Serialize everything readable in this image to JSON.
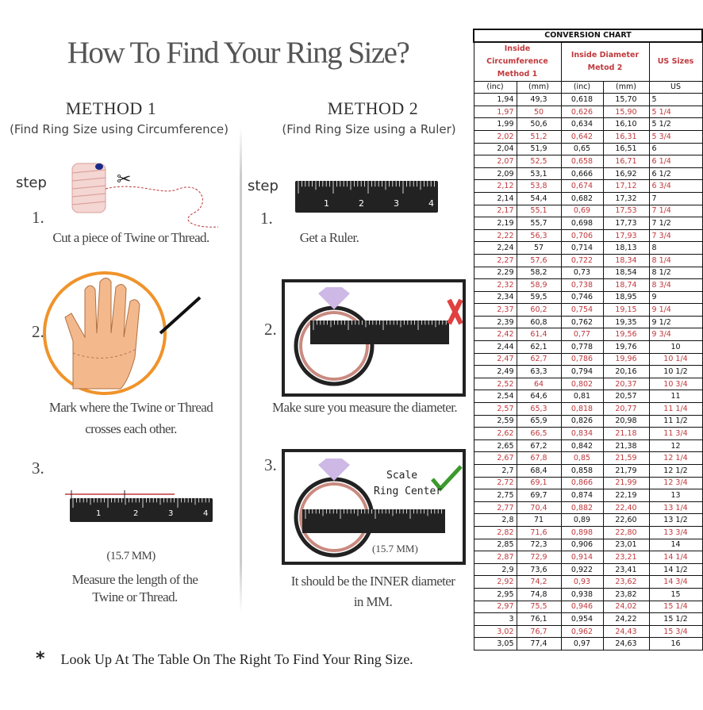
{
  "title": "How To Find Your Ring Size?",
  "method1": {
    "heading": "METHOD 1",
    "subtitle": "(Find Ring Size using Circumference)",
    "step_label": "step",
    "steps": [
      {
        "num": "1.",
        "text": "Cut a piece of Twine or Thread."
      },
      {
        "num": "2.",
        "text1": "Mark where the Twine or Thread",
        "text2": "crosses each other."
      },
      {
        "num": "3.",
        "measure": "(15.7 MM)",
        "text1": "Measure the length of the",
        "text2": "Twine or Thread."
      }
    ]
  },
  "method2": {
    "heading": "METHOD 2",
    "subtitle": "(Find Ring Size using a Ruler)",
    "step_label": "step",
    "steps": [
      {
        "num": "1.",
        "text": "Get a Ruler."
      },
      {
        "num": "2.",
        "text": "Make sure you measure the diameter."
      },
      {
        "num": "3.",
        "scale1": "Scale",
        "scale2": "Ring Center",
        "measure": "(15.7 MM)",
        "text1": "It should be the INNER diameter",
        "text2": "in MM."
      }
    ]
  },
  "ruler_ticks": [
    "1",
    "2",
    "3",
    "4"
  ],
  "footer": {
    "mark": "*",
    "text": "Look Up At The Table On The Right To Find Your Ring Size."
  },
  "colors": {
    "accent_red": "#c0393d",
    "check_green": "#3a9a2a",
    "cross_red": "#e04040"
  },
  "table": {
    "title": "CONVERSION CHART",
    "group1": "Inside Circumference Method 1",
    "group2": "Inside Diameter Metod 2",
    "group3": "US Sizes",
    "units": [
      "(inc)",
      "(mm)",
      "(inc)",
      "(mm)",
      "US"
    ],
    "rows": [
      [
        "1,94",
        "49,3",
        "0,618",
        "15,70",
        "5"
      ],
      [
        "1,97",
        "50",
        "0,626",
        "15,90",
        "5 1/4"
      ],
      [
        "1,99",
        "50,6",
        "0,634",
        "16,10",
        "5 1/2"
      ],
      [
        "2,02",
        "51,2",
        "0,642",
        "16,31",
        "5 3/4"
      ],
      [
        "2,04",
        "51,9",
        "0,65",
        "16,51",
        "6"
      ],
      [
        "2,07",
        "52,5",
        "0,658",
        "16,71",
        "6 1/4"
      ],
      [
        "2,09",
        "53,1",
        "0,666",
        "16,92",
        "6 1/2"
      ],
      [
        "2,12",
        "53,8",
        "0,674",
        "17,12",
        "6 3/4"
      ],
      [
        "2,14",
        "54,4",
        "0,682",
        "17,32",
        "7"
      ],
      [
        "2,17",
        "55,1",
        "0,69",
        "17,53",
        "7 1/4"
      ],
      [
        "2,19",
        "55,7",
        "0,698",
        "17,73",
        "7 1/2"
      ],
      [
        "2,22",
        "56,3",
        "0,706",
        "17,93",
        "7 3/4"
      ],
      [
        "2,24",
        "57",
        "0,714",
        "18,13",
        "8"
      ],
      [
        "2,27",
        "57,6",
        "0,722",
        "18,34",
        "8 1/4"
      ],
      [
        "2,29",
        "58,2",
        "0,73",
        "18,54",
        "8 1/2"
      ],
      [
        "2,32",
        "58,9",
        "0,738",
        "18,74",
        "8 3/4"
      ],
      [
        "2,34",
        "59,5",
        "0,746",
        "18,95",
        "9"
      ],
      [
        "2,37",
        "60,2",
        "0,754",
        "19,15",
        "9 1/4"
      ],
      [
        "2,39",
        "60,8",
        "0,762",
        "19,35",
        "9 1/2"
      ],
      [
        "2,42",
        "61,4",
        "0,77",
        "19,56",
        "9 3/4"
      ],
      [
        "2,44",
        "62,1",
        "0,778",
        "19,76",
        "10"
      ],
      [
        "2,47",
        "62,7",
        "0,786",
        "19,96",
        "10 1/4"
      ],
      [
        "2,49",
        "63,3",
        "0,794",
        "20,16",
        "10 1/2"
      ],
      [
        "2,52",
        "64",
        "0,802",
        "20,37",
        "10 3/4"
      ],
      [
        "2,54",
        "64,6",
        "0,81",
        "20,57",
        "11"
      ],
      [
        "2,57",
        "65,3",
        "0,818",
        "20,77",
        "11 1/4"
      ],
      [
        "2,59",
        "65,9",
        "0,826",
        "20,98",
        "11 1/2"
      ],
      [
        "2,62",
        "66,5",
        "0,834",
        "21,18",
        "11 3/4"
      ],
      [
        "2,65",
        "67,2",
        "0,842",
        "21,38",
        "12"
      ],
      [
        "2,67",
        "67,8",
        "0,85",
        "21,59",
        "12 1/4"
      ],
      [
        "2,7",
        "68,4",
        "0,858",
        "21,79",
        "12 1/2"
      ],
      [
        "2,72",
        "69,1",
        "0,866",
        "21,99",
        "12 3/4"
      ],
      [
        "2,75",
        "69,7",
        "0,874",
        "22,19",
        "13"
      ],
      [
        "2,77",
        "70,4",
        "0,882",
        "22,40",
        "13 1/4"
      ],
      [
        "2,8",
        "71",
        "0,89",
        "22,60",
        "13 1/2"
      ],
      [
        "2,82",
        "71,6",
        "0,898",
        "22,80",
        "13 3/4"
      ],
      [
        "2,85",
        "72,3",
        "0,906",
        "23,01",
        "14"
      ],
      [
        "2,87",
        "72,9",
        "0,914",
        "23,21",
        "14 1/4"
      ],
      [
        "2,9",
        "73,6",
        "0,922",
        "23,41",
        "14 1/2"
      ],
      [
        "2,92",
        "74,2",
        "0,93",
        "23,62",
        "14 3/4"
      ],
      [
        "2,95",
        "74,8",
        "0,938",
        "23,82",
        "15"
      ],
      [
        "2,97",
        "75,5",
        "0,946",
        "24,02",
        "15 1/4"
      ],
      [
        "3",
        "76,1",
        "0,954",
        "24,22",
        "15 1/2"
      ],
      [
        "3,02",
        "76,7",
        "0,962",
        "24,43",
        "15 3/4"
      ],
      [
        "3,05",
        "77,4",
        "0,97",
        "24,63",
        "16"
      ]
    ]
  }
}
